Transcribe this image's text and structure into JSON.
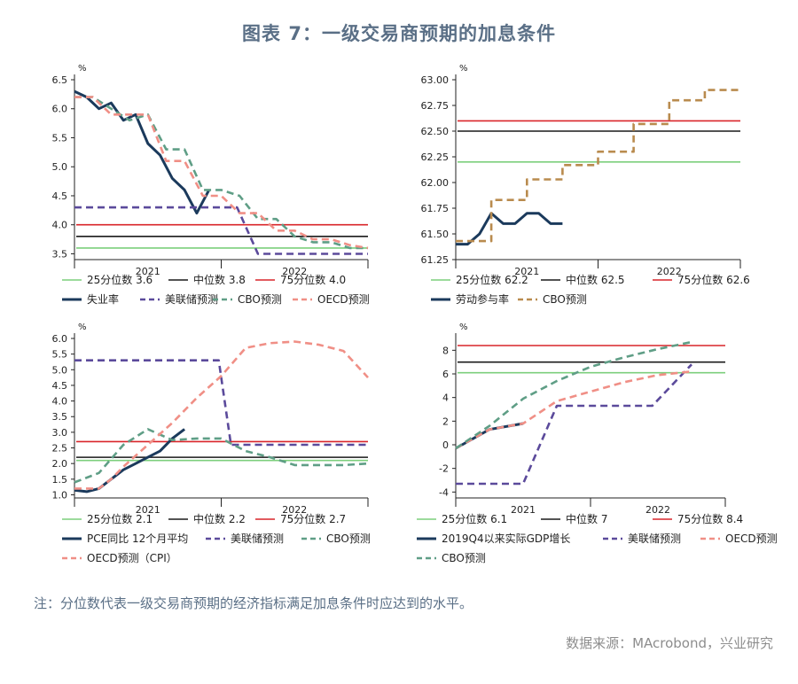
{
  "title": "图表 7：一级交易商预期的加息条件",
  "footnote": "注：分位数代表一级交易商预期的经济指标满足加息条件时应达到的水平。",
  "source": "数据来源：MAcrobond，兴业研究",
  "colors": {
    "green": "#7ccf7c",
    "black": "#1a1a1a",
    "red": "#d9252a",
    "navy": "#1b3a5c",
    "purple": "#5b4a9b",
    "teal": "#5f9e86",
    "salmon": "#f08f86",
    "gold": "#b98b4e",
    "title": "#5a6f86"
  },
  "chart_data": [
    {
      "type": "line",
      "unit": "%",
      "ylim": [
        3.4,
        6.5
      ],
      "yticks": [
        "3.5",
        "4.0",
        "4.5",
        "5.0",
        "5.5",
        "6.0",
        "6.5"
      ],
      "x_groups": [
        "2021",
        "2022"
      ],
      "hlines": [
        {
          "name": "25分位数 3.6",
          "value": 3.6,
          "color": "green"
        },
        {
          "name": "中位数 3.8",
          "value": 3.8,
          "color": "black"
        },
        {
          "name": "75分位数 4.0",
          "value": 4.0,
          "color": "red"
        }
      ],
      "series": [
        {
          "name": "失业率",
          "color": "navy",
          "style": "solid",
          "x": [
            0,
            1,
            2,
            3,
            4,
            5,
            6,
            7,
            8,
            9,
            10,
            11
          ],
          "y": [
            6.3,
            6.2,
            6.0,
            6.1,
            5.8,
            5.9,
            5.4,
            5.2,
            4.8,
            4.6,
            4.2,
            4.6
          ]
        },
        {
          "name": "美联储预测",
          "color": "purple",
          "style": "dash",
          "x": [
            0,
            13.3,
            15,
            24
          ],
          "y": [
            4.3,
            4.3,
            3.5,
            3.5
          ]
        },
        {
          "name": "CBO预测",
          "color": "teal",
          "style": "dash",
          "x": [
            0,
            1.5,
            3,
            4.5,
            6,
            7.5,
            9,
            10.5,
            12,
            13.5,
            15,
            16.5,
            18,
            19.5,
            21,
            22.5,
            24
          ],
          "y": [
            6.2,
            6.2,
            6.0,
            5.8,
            5.9,
            5.3,
            5.3,
            4.6,
            4.6,
            4.5,
            4.1,
            4.1,
            3.8,
            3.7,
            3.7,
            3.6,
            3.6
          ]
        },
        {
          "name": "OECD预测",
          "color": "salmon",
          "style": "dash",
          "x": [
            0,
            1.5,
            3,
            4.5,
            6,
            7.5,
            9,
            10.5,
            12,
            13.5,
            15,
            16.5,
            18,
            19.5,
            21,
            22.5,
            24
          ],
          "y": [
            6.2,
            6.2,
            5.9,
            5.9,
            5.9,
            5.1,
            5.1,
            4.5,
            4.5,
            4.2,
            4.2,
            3.9,
            3.9,
            3.75,
            3.75,
            3.65,
            3.6
          ]
        }
      ]
    },
    {
      "type": "line",
      "unit": "%",
      "ylim": [
        61.25,
        63.0
      ],
      "yticks": [
        "61.25",
        "61.50",
        "61.75",
        "62.00",
        "62.25",
        "62.50",
        "62.75",
        "63.00"
      ],
      "x_groups": [
        "2021",
        "2022"
      ],
      "hlines": [
        {
          "name": "25分位数 62.2",
          "value": 62.2,
          "color": "green"
        },
        {
          "name": "中位数 62.5",
          "value": 62.5,
          "color": "black"
        },
        {
          "name": "75分位数 62.6",
          "value": 62.6,
          "color": "red"
        }
      ],
      "series": [
        {
          "name": "劳动参与率",
          "color": "navy",
          "style": "solid",
          "x": [
            0,
            1,
            2,
            3,
            4,
            5,
            6,
            7,
            8,
            9
          ],
          "y": [
            61.4,
            61.4,
            61.5,
            61.7,
            61.6,
            61.6,
            61.7,
            61.7,
            61.6,
            61.6
          ]
        },
        {
          "name": "CBO预测",
          "color": "gold",
          "style": "dash",
          "x": [
            0,
            1.5,
            1.5,
            3,
            3,
            4.5,
            4.5,
            6,
            6,
            7.5,
            7.5,
            9,
            9,
            10.5,
            10.5,
            12,
            12,
            13.5,
            13.5,
            15,
            15,
            16.5,
            16.5,
            18,
            18,
            19.5,
            19.5,
            21,
            21,
            22.5,
            22.5,
            24
          ],
          "y": [
            61.43,
            61.43,
            61.43,
            61.43,
            61.83,
            61.83,
            61.83,
            61.83,
            62.03,
            62.03,
            62.03,
            62.03,
            62.17,
            62.17,
            62.17,
            62.17,
            62.3,
            62.3,
            62.3,
            62.3,
            62.57,
            62.57,
            62.57,
            62.57,
            62.8,
            62.8,
            62.8,
            62.8,
            62.9,
            62.9,
            62.9,
            62.9
          ]
        }
      ]
    },
    {
      "type": "line",
      "unit": "%",
      "ylim": [
        0.9,
        6.0
      ],
      "yticks": [
        "1.0",
        "1.5",
        "2.0",
        "2.5",
        "3.0",
        "3.5",
        "4.0",
        "4.5",
        "5.0",
        "5.5",
        "6.0"
      ],
      "x_groups": [
        "2021",
        "2022"
      ],
      "hlines": [
        {
          "name": "25分位数 2.1",
          "value": 2.1,
          "color": "green"
        },
        {
          "name": "中位数 2.2",
          "value": 2.2,
          "color": "black"
        },
        {
          "name": "75分位数 2.7",
          "value": 2.7,
          "color": "red"
        }
      ],
      "series": [
        {
          "name": "PCE同比 12个月平均",
          "color": "navy",
          "style": "solid",
          "x": [
            0,
            1,
            2,
            3,
            4,
            5,
            6,
            7,
            8,
            9
          ],
          "y": [
            1.15,
            1.1,
            1.2,
            1.5,
            1.8,
            2.0,
            2.2,
            2.4,
            2.8,
            3.1
          ]
        },
        {
          "name": "美联储预测",
          "color": "purple",
          "style": "dash",
          "x": [
            0,
            11.8,
            12.8,
            24
          ],
          "y": [
            5.3,
            5.3,
            2.6,
            2.6
          ]
        },
        {
          "name": "CBO预测",
          "color": "teal",
          "style": "dash",
          "x": [
            0,
            2,
            4,
            6,
            8,
            10,
            12,
            14,
            16,
            18,
            20,
            22,
            24
          ],
          "y": [
            1.4,
            1.7,
            2.6,
            3.1,
            2.75,
            2.8,
            2.8,
            2.4,
            2.2,
            1.95,
            1.95,
            1.95,
            2.0
          ]
        },
        {
          "name": "OECD预测（CPI）",
          "color": "salmon",
          "style": "dash",
          "x": [
            0,
            1,
            2,
            3,
            4,
            6,
            8,
            10,
            12,
            14,
            16,
            18,
            20,
            22,
            24
          ],
          "y": [
            1.2,
            1.2,
            1.2,
            1.5,
            1.9,
            2.6,
            3.3,
            4.1,
            4.8,
            5.7,
            5.85,
            5.9,
            5.8,
            5.6,
            4.75
          ]
        }
      ]
    },
    {
      "type": "line",
      "unit": "%",
      "ylim": [
        -4.5,
        9.0
      ],
      "yticks": [
        "-4",
        "-2",
        "0",
        "2",
        "4",
        "6",
        "8"
      ],
      "x_groups": [
        "2021",
        "2022"
      ],
      "hlines": [
        {
          "name": "25分位数 6.1",
          "value": 6.1,
          "color": "green"
        },
        {
          "name": "中位数 7",
          "value": 7.0,
          "color": "black"
        },
        {
          "name": "75分位数 8.4",
          "value": 8.4,
          "color": "red"
        }
      ],
      "series": [
        {
          "name": "2019Q4以来实际GDP增长",
          "color": "navy",
          "style": "solid",
          "x": [
            0,
            3,
            6
          ],
          "y": [
            -0.3,
            1.3,
            1.8
          ]
        },
        {
          "name": "美联储预测",
          "color": "purple",
          "style": "dash",
          "x": [
            0,
            6,
            9,
            17.5,
            21
          ],
          "y": [
            -3.3,
            -3.3,
            3.3,
            3.3,
            6.8
          ]
        },
        {
          "name": "OECD预测",
          "color": "salmon",
          "style": "dash",
          "x": [
            0,
            3,
            6,
            9,
            12,
            15,
            18,
            21
          ],
          "y": [
            -0.3,
            1.3,
            1.8,
            3.7,
            4.5,
            5.3,
            5.9,
            6.2
          ]
        },
        {
          "name": "CBO预测",
          "color": "teal",
          "style": "dash",
          "x": [
            0,
            3,
            6,
            9,
            12,
            15,
            18,
            21
          ],
          "y": [
            -0.3,
            1.6,
            3.9,
            5.4,
            6.6,
            7.4,
            8.1,
            8.7
          ]
        }
      ]
    }
  ]
}
